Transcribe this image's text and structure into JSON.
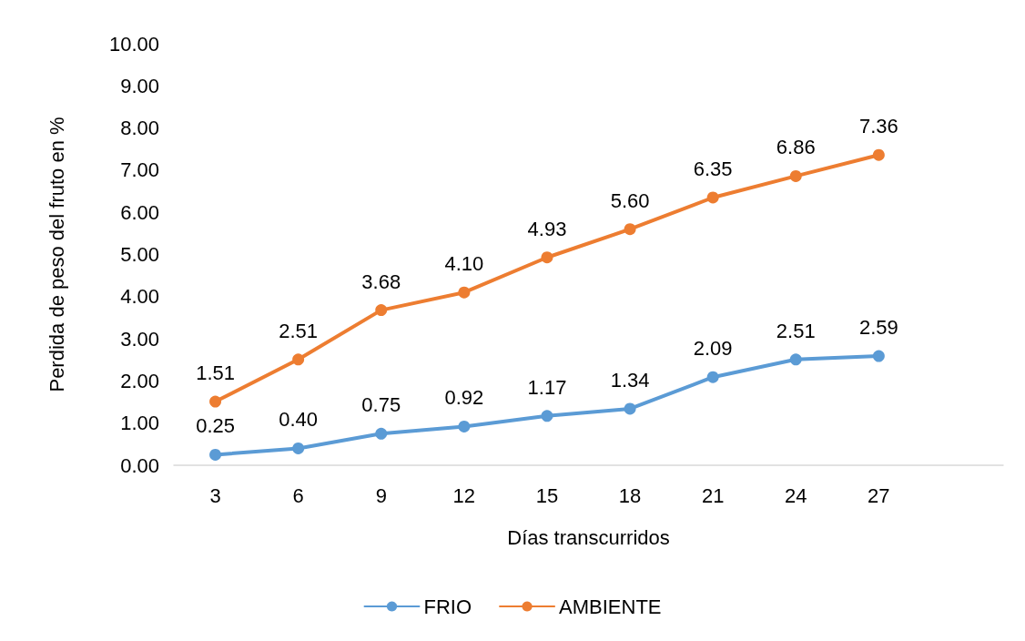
{
  "chart_data": {
    "type": "line",
    "xlabel": "Días transcurridos",
    "ylabel": "Perdida de peso del fruto en %",
    "categories": [
      "3",
      "6",
      "9",
      "12",
      "15",
      "18",
      "21",
      "24",
      "27",
      null
    ],
    "series": [
      {
        "name": "FRIO",
        "color": "#5b9bd5",
        "values": [
          0.25,
          0.4,
          0.75,
          0.92,
          1.17,
          1.34,
          2.09,
          2.51,
          2.59,
          null
        ],
        "value_labels": [
          "0.25",
          "0.40",
          "0.75",
          "0.92",
          "1.17",
          "1.34",
          "2.09",
          "2.51",
          "2.59",
          null
        ]
      },
      {
        "name": "AMBIENTE",
        "color": "#ed7d31",
        "values": [
          1.51,
          2.51,
          3.68,
          4.1,
          4.93,
          5.6,
          6.35,
          6.86,
          7.36,
          null
        ],
        "value_labels": [
          "1.51",
          "2.51",
          "3.68",
          "4.10",
          "4.93",
          "5.60",
          "6.35",
          "6.86",
          "7.36",
          null
        ]
      }
    ],
    "ylim": [
      0,
      10
    ],
    "yticks": [
      {
        "value": 0,
        "label": "0.00"
      },
      {
        "value": 1,
        "label": "1.00"
      },
      {
        "value": 2,
        "label": "2.00"
      },
      {
        "value": 3,
        "label": "3.00"
      },
      {
        "value": 4,
        "label": "4.00"
      },
      {
        "value": 5,
        "label": "5.00"
      },
      {
        "value": 6,
        "label": "6.00"
      },
      {
        "value": 7,
        "label": "7.00"
      },
      {
        "value": 8,
        "label": "8.00"
      },
      {
        "value": 9,
        "label": "9.00"
      },
      {
        "value": 10,
        "label": "10.00"
      }
    ],
    "grid": false,
    "legend": "bottom",
    "marker": "circle",
    "line_style": "solid"
  }
}
